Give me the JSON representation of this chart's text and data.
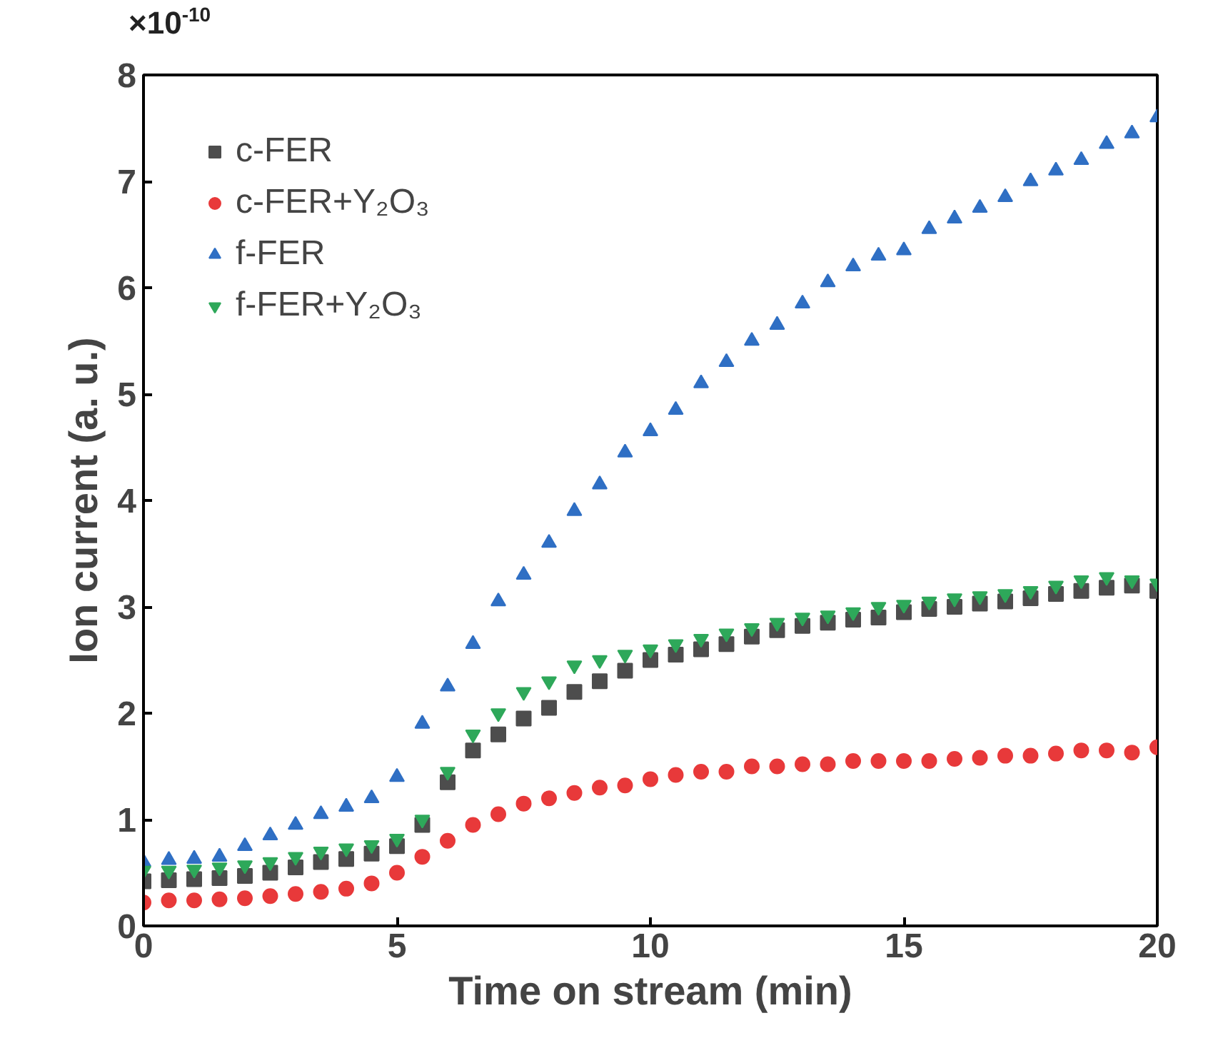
{
  "chart_data": {
    "type": "scatter",
    "xlabel": "Time on stream (min)",
    "ylabel": "Ion current (a. u.)",
    "annotations": [
      "×10$^{-10}$"
    ],
    "xlim": [
      0,
      20
    ],
    "xticks": [
      0,
      5,
      10,
      15,
      20
    ],
    "ylim": [
      0,
      8
    ],
    "yticks": [
      0,
      1,
      2,
      3,
      4,
      5,
      6,
      7,
      8
    ],
    "grid": false,
    "legend": "top left",
    "x": [
      0,
      0.5,
      1,
      1.5,
      2,
      2.5,
      3,
      3.5,
      4,
      4.5,
      5,
      5.5,
      6,
      6.5,
      7,
      7.5,
      8,
      8.5,
      9,
      9.5,
      10,
      10.5,
      11,
      11.5,
      12,
      12.5,
      13,
      13.5,
      14,
      14.5,
      15,
      15.5,
      16,
      16.5,
      17,
      17.5,
      18,
      18.5,
      19,
      19.5,
      20
    ],
    "series": [
      {
        "name": "c-FER",
        "color": "#4d4d4d",
        "marker": "square",
        "values": [
          0.42,
          0.43,
          0.44,
          0.45,
          0.47,
          0.5,
          0.55,
          0.6,
          0.63,
          0.68,
          0.75,
          0.95,
          1.35,
          1.65,
          1.8,
          1.95,
          2.05,
          2.2,
          2.3,
          2.4,
          2.5,
          2.55,
          2.6,
          2.65,
          2.72,
          2.78,
          2.82,
          2.85,
          2.88,
          2.9,
          2.95,
          2.98,
          3.0,
          3.03,
          3.05,
          3.08,
          3.12,
          3.15,
          3.18,
          3.2,
          3.15
        ]
      },
      {
        "name": "c-FER+Y₂O₃",
        "color": "#e8393a",
        "marker": "circle",
        "values": [
          0.22,
          0.24,
          0.24,
          0.25,
          0.26,
          0.28,
          0.3,
          0.32,
          0.35,
          0.4,
          0.5,
          0.65,
          0.8,
          0.95,
          1.05,
          1.15,
          1.2,
          1.25,
          1.3,
          1.32,
          1.38,
          1.42,
          1.45,
          1.45,
          1.5,
          1.5,
          1.52,
          1.52,
          1.55,
          1.55,
          1.55,
          1.55,
          1.57,
          1.58,
          1.6,
          1.6,
          1.62,
          1.65,
          1.65,
          1.63,
          1.68
        ]
      },
      {
        "name": "f-FER",
        "color": "#2f6fc4",
        "marker": "triangle",
        "values": [
          0.6,
          0.62,
          0.63,
          0.65,
          0.75,
          0.85,
          0.95,
          1.05,
          1.12,
          1.2,
          1.4,
          1.9,
          2.25,
          2.65,
          3.05,
          3.3,
          3.6,
          3.9,
          4.15,
          4.45,
          4.65,
          4.85,
          5.1,
          5.3,
          5.5,
          5.65,
          5.85,
          6.05,
          6.2,
          6.3,
          6.35,
          6.55,
          6.65,
          6.75,
          6.85,
          7.0,
          7.1,
          7.2,
          7.35,
          7.45,
          7.6
        ]
      },
      {
        "name": "f-FER+Y₂O₃",
        "color": "#2ea85a",
        "values": [
          0.52,
          0.52,
          0.53,
          0.55,
          0.57,
          0.6,
          0.65,
          0.7,
          0.73,
          0.76,
          0.82,
          1.0,
          1.45,
          1.8,
          2.0,
          2.2,
          2.3,
          2.45,
          2.5,
          2.55,
          2.6,
          2.65,
          2.7,
          2.75,
          2.8,
          2.85,
          2.9,
          2.92,
          2.95,
          3.0,
          3.02,
          3.05,
          3.08,
          3.1,
          3.12,
          3.15,
          3.2,
          3.25,
          3.28,
          3.25,
          3.22
        ]
      }
    ]
  }
}
